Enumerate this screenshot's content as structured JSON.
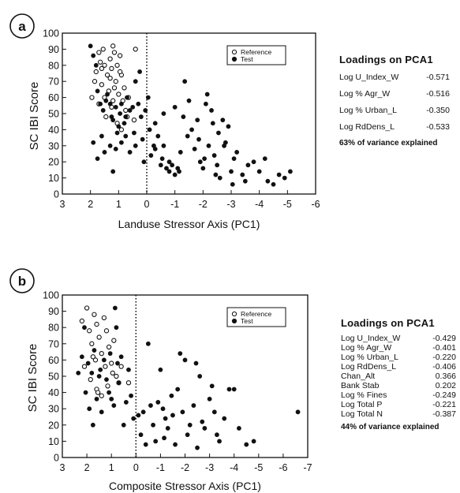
{
  "chart_data": [
    {
      "type": "scatter",
      "panel_label": "a",
      "xlabel": "Landuse Stressor Axis (PC1)",
      "ylabel": "SC IBI Score",
      "xlim": [
        3,
        -6
      ],
      "ylim": [
        0,
        100
      ],
      "xticks": [
        3,
        2,
        1,
        0,
        -1,
        -2,
        -3,
        -4,
        -5,
        -6
      ],
      "yticks": [
        0,
        10,
        20,
        30,
        40,
        50,
        60,
        70,
        80,
        90,
        100
      ],
      "xtick_labels": [
        "3",
        "2",
        "1",
        "0",
        "-1",
        "-2",
        "-3",
        "-4",
        "-5",
        "-6"
      ],
      "ytick_labels": [
        "0",
        "10",
        "20",
        "30",
        "40",
        "50",
        "60",
        "70",
        "80",
        "90",
        "100"
      ],
      "reference_line_x": 0,
      "legend": {
        "position": "top-right",
        "items": [
          "Reference",
          "Test"
        ]
      },
      "series": [
        {
          "name": "Reference",
          "marker": "open-circle",
          "points": [
            [
              1.95,
              60
            ],
            [
              1.85,
              70
            ],
            [
              1.8,
              76
            ],
            [
              1.7,
              88
            ],
            [
              1.65,
              82
            ],
            [
              1.6,
              68
            ],
            [
              1.55,
              90
            ],
            [
              1.5,
              60
            ],
            [
              1.4,
              74
            ],
            [
              1.35,
              64
            ],
            [
              1.3,
              84
            ],
            [
              1.25,
              78
            ],
            [
              1.2,
              58
            ],
            [
              1.15,
              88
            ],
            [
              1.1,
              70
            ],
            [
              1.05,
              80
            ],
            [
              1.0,
              62
            ],
            [
              0.95,
              86
            ],
            [
              0.9,
              74
            ],
            [
              0.85,
              58
            ],
            [
              0.8,
              66
            ],
            [
              0.75,
              52
            ],
            [
              0.7,
              48
            ],
            [
              1.7,
              56
            ],
            [
              1.45,
              48
            ],
            [
              1.25,
              54
            ],
            [
              1.05,
              44
            ],
            [
              0.9,
              40
            ],
            [
              0.65,
              60
            ],
            [
              0.45,
              46
            ],
            [
              0.4,
              90
            ],
            [
              1.5,
              80
            ],
            [
              1.3,
              72
            ],
            [
              1.15,
              66
            ],
            [
              0.95,
              76
            ],
            [
              1.6,
              78
            ],
            [
              1.2,
              92
            ]
          ]
        },
        {
          "name": "Test",
          "marker": "filled-circle",
          "points": [
            [
              2.0,
              92
            ],
            [
              1.9,
              86
            ],
            [
              1.8,
              80
            ],
            [
              1.75,
              64
            ],
            [
              1.65,
              56
            ],
            [
              1.55,
              52
            ],
            [
              1.45,
              58
            ],
            [
              1.4,
              62
            ],
            [
              1.3,
              56
            ],
            [
              1.25,
              48
            ],
            [
              1.2,
              46
            ],
            [
              1.1,
              54
            ],
            [
              1.05,
              38
            ],
            [
              1.0,
              42
            ],
            [
              0.95,
              50
            ],
            [
              0.9,
              56
            ],
            [
              0.8,
              44
            ],
            [
              0.75,
              48
            ],
            [
              0.7,
              60
            ],
            [
              0.6,
              52
            ],
            [
              0.5,
              54
            ],
            [
              0.45,
              38
            ],
            [
              0.4,
              30
            ],
            [
              0.3,
              56
            ],
            [
              0.2,
              48
            ],
            [
              0.15,
              34
            ],
            [
              0.1,
              20
            ],
            [
              1.9,
              32
            ],
            [
              1.75,
              22
            ],
            [
              1.6,
              36
            ],
            [
              1.5,
              26
            ],
            [
              1.3,
              30
            ],
            [
              1.2,
              14
            ],
            [
              1.1,
              28
            ],
            [
              0.9,
              32
            ],
            [
              0.75,
              36
            ],
            [
              0.6,
              26
            ],
            [
              0.4,
              70
            ],
            [
              0.25,
              76
            ],
            [
              0.05,
              52
            ],
            [
              -0.05,
              60
            ],
            [
              -0.1,
              40
            ],
            [
              -0.15,
              24
            ],
            [
              -0.25,
              30
            ],
            [
              -0.3,
              44
            ],
            [
              -0.4,
              36
            ],
            [
              -0.5,
              18
            ],
            [
              -0.55,
              22
            ],
            [
              -0.6,
              50
            ],
            [
              -0.7,
              16
            ],
            [
              -0.8,
              14
            ],
            [
              -0.9,
              18
            ],
            [
              -1.0,
              12
            ],
            [
              -1.1,
              16
            ],
            [
              -1.2,
              26
            ],
            [
              -1.3,
              48
            ],
            [
              -1.35,
              70
            ],
            [
              -1.45,
              36
            ],
            [
              -1.5,
              58
            ],
            [
              -1.6,
              40
            ],
            [
              -1.7,
              28
            ],
            [
              -1.8,
              46
            ],
            [
              -1.85,
              34
            ],
            [
              -1.9,
              20
            ],
            [
              -2.0,
              16
            ],
            [
              -2.1,
              56
            ],
            [
              -2.15,
              62
            ],
            [
              -2.2,
              30
            ],
            [
              -2.3,
              52
            ],
            [
              -2.35,
              44
            ],
            [
              -2.4,
              24
            ],
            [
              -2.5,
              18
            ],
            [
              -2.55,
              38
            ],
            [
              -2.6,
              10
            ],
            [
              -2.7,
              46
            ],
            [
              -2.8,
              32
            ],
            [
              -2.9,
              42
            ],
            [
              -3.0,
              14
            ],
            [
              -3.1,
              22
            ],
            [
              -3.2,
              26
            ],
            [
              -3.4,
              12
            ],
            [
              -3.5,
              8
            ],
            [
              -3.6,
              18
            ],
            [
              -3.8,
              20
            ],
            [
              -4.0,
              14
            ],
            [
              -4.2,
              22
            ],
            [
              -4.3,
              8
            ],
            [
              -4.5,
              6
            ],
            [
              -4.7,
              12
            ],
            [
              -4.9,
              10
            ],
            [
              -5.1,
              14
            ],
            [
              -0.3,
              28
            ],
            [
              -0.6,
              30
            ],
            [
              -1.0,
              54
            ],
            [
              -0.8,
              20
            ],
            [
              -1.15,
              14
            ],
            [
              -2.05,
              22
            ],
            [
              -2.45,
              12
            ],
            [
              -2.75,
              30
            ],
            [
              -3.05,
              6
            ]
          ]
        }
      ]
    },
    {
      "type": "scatter",
      "panel_label": "b",
      "xlabel": "Composite Stressor Axis (PC1)",
      "ylabel": "SC IBI Score",
      "xlim": [
        3,
        -7
      ],
      "ylim": [
        0,
        100
      ],
      "xticks": [
        3,
        2,
        1,
        0,
        -1,
        -2,
        -3,
        -4,
        -5,
        -6,
        -7
      ],
      "yticks": [
        0,
        10,
        20,
        30,
        40,
        50,
        60,
        70,
        80,
        90,
        100
      ],
      "xtick_labels": [
        "3",
        "2",
        "1",
        "0",
        "-1",
        "-2",
        "-3",
        "-4",
        "-5",
        "-6",
        "-7"
      ],
      "ytick_labels": [
        "0",
        "10",
        "20",
        "30",
        "40",
        "50",
        "60",
        "70",
        "80",
        "90",
        "100"
      ],
      "reference_line_x": 0,
      "legend": {
        "position": "top-right",
        "items": [
          "Reference",
          "Test"
        ]
      },
      "series": [
        {
          "name": "Reference",
          "marker": "open-circle",
          "points": [
            [
              2.2,
              84
            ],
            [
              2.0,
              92
            ],
            [
              1.9,
              78
            ],
            [
              1.8,
              70
            ],
            [
              1.7,
              88
            ],
            [
              1.65,
              60
            ],
            [
              1.6,
              82
            ],
            [
              1.5,
              74
            ],
            [
              1.4,
              64
            ],
            [
              1.3,
              86
            ],
            [
              1.25,
              56
            ],
            [
              1.2,
              78
            ],
            [
              1.1,
              68
            ],
            [
              1.0,
              58
            ],
            [
              0.9,
              72
            ],
            [
              0.8,
              50
            ],
            [
              0.7,
              46
            ],
            [
              2.1,
              56
            ],
            [
              1.85,
              48
            ],
            [
              1.6,
              42
            ],
            [
              1.4,
              38
            ],
            [
              1.15,
              44
            ],
            [
              0.95,
              52
            ],
            [
              0.6,
              56
            ],
            [
              0.3,
              46
            ],
            [
              1.75,
              62
            ],
            [
              1.55,
              40
            ]
          ]
        },
        {
          "name": "Test",
          "marker": "filled-circle",
          "points": [
            [
              2.35,
              52
            ],
            [
              2.2,
              62
            ],
            [
              2.1,
              80
            ],
            [
              2.05,
              40
            ],
            [
              1.95,
              58
            ],
            [
              1.9,
              30
            ],
            [
              1.8,
              52
            ],
            [
              1.75,
              20
            ],
            [
              1.7,
              66
            ],
            [
              1.6,
              36
            ],
            [
              1.5,
              50
            ],
            [
              1.45,
              54
            ],
            [
              1.4,
              28
            ],
            [
              1.3,
              60
            ],
            [
              1.2,
              48
            ],
            [
              1.1,
              40
            ],
            [
              1.05,
              64
            ],
            [
              1.0,
              36
            ],
            [
              0.9,
              32
            ],
            [
              0.85,
              92
            ],
            [
              0.8,
              80
            ],
            [
              0.75,
              58
            ],
            [
              0.7,
              46
            ],
            [
              0.6,
              62
            ],
            [
              0.5,
              20
            ],
            [
              0.4,
              34
            ],
            [
              0.3,
              54
            ],
            [
              0.2,
              38
            ],
            [
              0.1,
              24
            ],
            [
              -0.1,
              26
            ],
            [
              -0.2,
              14
            ],
            [
              -0.3,
              28
            ],
            [
              -0.5,
              70
            ],
            [
              -0.6,
              32
            ],
            [
              -0.7,
              20
            ],
            [
              -0.8,
              10
            ],
            [
              -0.9,
              34
            ],
            [
              -1.0,
              54
            ],
            [
              -1.1,
              30
            ],
            [
              -1.2,
              24
            ],
            [
              -1.3,
              18
            ],
            [
              -1.45,
              38
            ],
            [
              -1.6,
              8
            ],
            [
              -1.7,
              42
            ],
            [
              -1.8,
              64
            ],
            [
              -1.9,
              28
            ],
            [
              -2.0,
              60
            ],
            [
              -2.1,
              14
            ],
            [
              -2.2,
              20
            ],
            [
              -2.35,
              32
            ],
            [
              -2.5,
              6
            ],
            [
              -2.6,
              50
            ],
            [
              -2.7,
              22
            ],
            [
              -2.8,
              18
            ],
            [
              -3.0,
              36
            ],
            [
              -3.1,
              44
            ],
            [
              -3.3,
              14
            ],
            [
              -3.4,
              10
            ],
            [
              -3.6,
              24
            ],
            [
              -3.8,
              42
            ],
            [
              -4.0,
              42
            ],
            [
              -4.2,
              18
            ],
            [
              -4.5,
              8
            ],
            [
              -4.8,
              10
            ],
            [
              -6.6,
              28
            ],
            [
              -1.5,
              26
            ],
            [
              -0.4,
              8
            ],
            [
              -2.45,
              58
            ],
            [
              -3.2,
              28
            ],
            [
              -1.15,
              12
            ]
          ]
        }
      ]
    }
  ],
  "loadings_a": {
    "title": "Loadings on PCA1",
    "rows": [
      {
        "label": "Log U_Index_W",
        "value": "-0.571"
      },
      {
        "label": "Log % Agr_W",
        "value": "-0.516"
      },
      {
        "label": "Log % Urban_L",
        "value": "-0.350"
      },
      {
        "label": "Log RdDens_L",
        "value": "-0.533"
      }
    ],
    "variance": "63% of variance explained"
  },
  "loadings_b": {
    "title": "Loadings on PCA1",
    "rows": [
      {
        "label": "Log U_Index_W",
        "value": "-0.429"
      },
      {
        "label": "Log % Agr_W",
        "value": "-0.401"
      },
      {
        "label": "Log % Urban_L",
        "value": "-0.220"
      },
      {
        "label": "Log RdDens_L",
        "value": "-0.406"
      },
      {
        "label": "Chan_Alt",
        "value": "0.366"
      },
      {
        "label": "Bank Stab",
        "value": "0.202"
      },
      {
        "label": "Log % Fines",
        "value": "-0.249"
      },
      {
        "label": "Log Total P",
        "value": "-0.221"
      },
      {
        "label": "Log Total N",
        "value": "-0.387"
      }
    ],
    "variance": "44% of variance explained"
  }
}
